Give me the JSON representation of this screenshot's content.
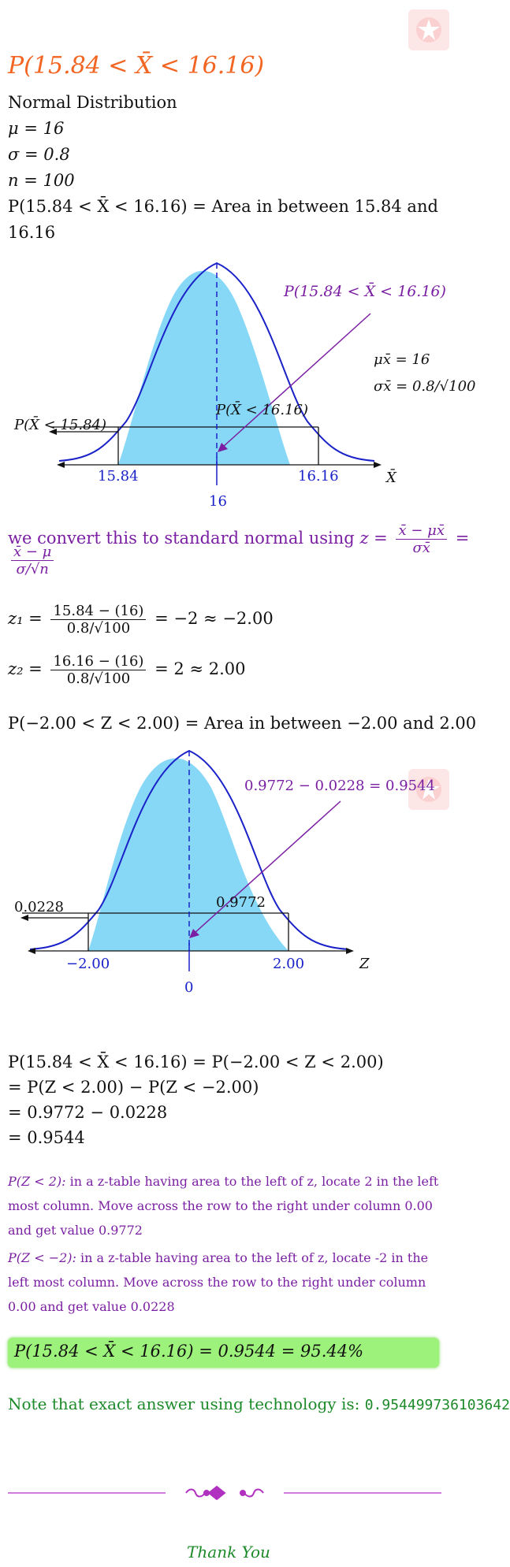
{
  "title": "P(15.84 < X̄ < 16.16)",
  "given": {
    "dist": "Normal Distribution",
    "mu": "μ = 16",
    "sigma": "σ = 0.8",
    "n": "n = 100",
    "area_line1": "P(15.84 < X̄ < 16.16) = Area in between 15.84 and",
    "area_line2": "16.16"
  },
  "graph1": {
    "callout": "P(15.84 < X̄ < 16.16)",
    "mu_label": "μx̄ = 16",
    "sigma_label": "σx̄ = 0.8/√100",
    "left_label": "P(X̄ < 15.84)",
    "mid_label": "P(X̄ < 16.16)",
    "tick_left": "15.84",
    "tick_right": "16.16",
    "center": "16",
    "axis": "X̄"
  },
  "convert": {
    "text": "we convert this to standard normal using",
    "z_formula_lhs": "z =",
    "f1_num": "x̄ − μx̄",
    "f1_den": "σx̄",
    "eq": "=",
    "f2_num": "x̄ − μ",
    "f2_den": "σ/√n"
  },
  "z1": {
    "lhs": "z₁ =",
    "num": "15.84 − (16)",
    "den": "0.8/√100",
    "rhs": "= −2 ≈ −2.00"
  },
  "z2": {
    "lhs": "z₂ =",
    "num": "16.16 − (16)",
    "den": "0.8/√100",
    "rhs": "= 2 ≈ 2.00"
  },
  "z_area": "P(−2.00 < Z < 2.00) = Area in between −2.00 and 2.00",
  "graph2": {
    "callout": "0.9772 − 0.0228 = 0.9544",
    "left_label": "0.0228",
    "mid_label": "0.9772",
    "tick_left": "−2.00",
    "tick_right": "2.00",
    "center": "0",
    "axis": "Z"
  },
  "calc": [
    "P(15.84 < X̄ < 16.16) = P(−2.00 < Z < 2.00)",
    "= P(Z < 2.00) − P(Z < −2.00)",
    "= 0.9772 − 0.0228",
    "= 0.9544"
  ],
  "explain": {
    "p1_label": "P(Z < 2):",
    "p1_text": "in a z-table having area to the left of z, locate 2 in the left most column. Move across the row to the right under column 0.00 and get value 0.9772",
    "p2_label": "P(Z < −2):",
    "p2_text": "in a z-table having area to the left of z, locate -2 in the left most column. Move across the row to the right under column 0.00 and get value 0.0228"
  },
  "answer": "P(15.84 < X̄ < 16.16) = 0.9544 = 95.44%",
  "note": {
    "text": "Note that exact answer using technology is:",
    "value": "0.954499736103642"
  },
  "thanks": "Thank You",
  "colors": {
    "title": "#f26522",
    "purple": "#7a1fa2",
    "green": "#1d8a2a",
    "fill": "#87d8f7",
    "curve": "#1a22c8",
    "answer_bg": "#9cf27a"
  }
}
